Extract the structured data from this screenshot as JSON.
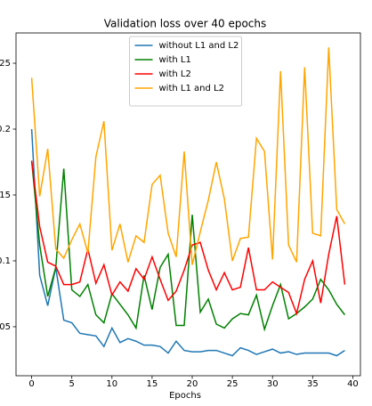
{
  "chart_data": {
    "type": "line",
    "title": "Validation loss over 40 epochs",
    "xlabel": "Epochs",
    "x": [
      0,
      1,
      2,
      3,
      4,
      5,
      6,
      7,
      8,
      9,
      10,
      11,
      12,
      13,
      14,
      15,
      16,
      17,
      18,
      19,
      20,
      21,
      22,
      23,
      24,
      25,
      26,
      27,
      28,
      29,
      30,
      31,
      32,
      33,
      34,
      35,
      36,
      37,
      38,
      39
    ],
    "xlim": [
      -1.95,
      40.95
    ],
    "xticks": [
      0,
      5,
      10,
      15,
      20,
      25,
      30,
      35,
      40
    ],
    "ylim": [
      0.0128,
      0.273
    ],
    "yticks": [
      0.05,
      0.1,
      0.15,
      0.2,
      0.25
    ],
    "legend": "upper center",
    "series": [
      {
        "name": "without L1 and L2",
        "color": "#1f77b4",
        "values": [
          0.2,
          0.089,
          0.066,
          0.095,
          0.055,
          0.053,
          0.045,
          0.044,
          0.043,
          0.035,
          0.049,
          0.038,
          0.041,
          0.039,
          0.036,
          0.036,
          0.035,
          0.03,
          0.039,
          0.032,
          0.031,
          0.031,
          0.032,
          0.032,
          0.03,
          0.028,
          0.034,
          0.032,
          0.029,
          0.031,
          0.033,
          0.03,
          0.031,
          0.029,
          0.03,
          0.03,
          0.03,
          0.03,
          0.028,
          0.032
        ]
      },
      {
        "name": "with L1",
        "color": "#008000",
        "values": [
          0.176,
          0.112,
          0.073,
          0.095,
          0.17,
          0.078,
          0.073,
          0.082,
          0.059,
          0.053,
          0.075,
          0.067,
          0.059,
          0.049,
          0.089,
          0.063,
          0.095,
          0.105,
          0.051,
          0.051,
          0.135,
          0.061,
          0.071,
          0.052,
          0.049,
          0.056,
          0.06,
          0.059,
          0.074,
          0.048,
          0.066,
          0.082,
          0.056,
          0.06,
          0.065,
          0.071,
          0.086,
          0.078,
          0.067,
          0.059
        ]
      },
      {
        "name": "with L2",
        "color": "#ff0000",
        "values": [
          0.176,
          0.126,
          0.099,
          0.096,
          0.082,
          0.082,
          0.084,
          0.109,
          0.083,
          0.097,
          0.074,
          0.084,
          0.077,
          0.094,
          0.086,
          0.103,
          0.086,
          0.07,
          0.077,
          0.093,
          0.112,
          0.114,
          0.093,
          0.078,
          0.091,
          0.078,
          0.08,
          0.11,
          0.078,
          0.078,
          0.084,
          0.08,
          0.076,
          0.06,
          0.086,
          0.1,
          0.068,
          0.105,
          0.134,
          0.082
        ]
      },
      {
        "name": "with L1 and L2",
        "color": "#ffa500",
        "values": [
          0.239,
          0.149,
          0.185,
          0.109,
          0.102,
          0.116,
          0.128,
          0.106,
          0.179,
          0.206,
          0.108,
          0.128,
          0.099,
          0.119,
          0.114,
          0.158,
          0.165,
          0.121,
          0.103,
          0.183,
          0.097,
          0.122,
          0.146,
          0.175,
          0.147,
          0.1,
          0.117,
          0.118,
          0.193,
          0.183,
          0.101,
          0.244,
          0.112,
          0.099,
          0.247,
          0.121,
          0.119,
          0.262,
          0.139,
          0.128
        ]
      }
    ]
  }
}
